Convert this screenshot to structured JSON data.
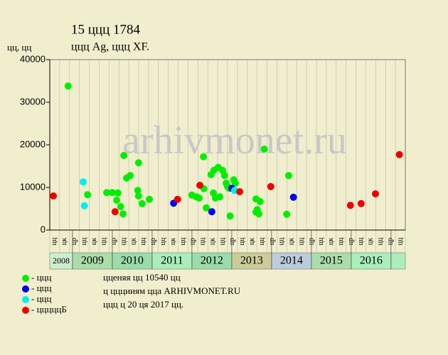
{
  "chart_data": {
    "type": "scatter",
    "title": "15 ццц 1784",
    "subtitle": "ццц Ag, ццц XF.",
    "y_label": "цц, цц",
    "watermark": "arhivmonet.ru",
    "xlim": [
      2008.43,
      2017.36
    ],
    "ylim": [
      0,
      40000
    ],
    "yticks": [
      0,
      10000,
      20000,
      30000,
      40000
    ],
    "xticks": [
      2009,
      2010,
      2011,
      2012,
      2013,
      2014,
      2015,
      2016,
      2017
    ],
    "years": [
      2008,
      2009,
      2010,
      2011,
      2012,
      2013,
      2014,
      2015,
      2016
    ],
    "year_colors": [
      "#cceecc",
      "#aaddaa",
      "#99ddaa",
      "#aaeebb",
      "#99ddaa",
      "#cccc99",
      "#bbccdd",
      "#aaddaa",
      "#aaeebb"
    ],
    "quarter_labels": [
      "цц",
      "цк",
      "цр",
      "цц",
      "цк",
      "цц",
      "цр",
      "цц",
      "цк",
      "цц",
      "цр",
      "цц",
      "цк",
      "цц",
      "цр",
      "цц",
      "цк",
      "цц",
      "цр",
      "цц",
      "цк",
      "цц",
      "цр",
      "цц",
      "цк",
      "цц",
      "цр",
      "цц",
      "цк",
      "цц",
      "цр",
      "цц",
      "цк",
      "цц",
      "цр",
      "цц"
    ],
    "series": [
      {
        "name": "- ццц",
        "color": "#00ee00",
        "x": [
          2008.89,
          2009.38,
          2009.86,
          2010.0,
          2010.14,
          2010.29,
          2010.11,
          2010.21,
          2010.27,
          2010.36,
          2010.45,
          2010.64,
          2010.66,
          2010.66,
          2010.75,
          2010.93,
          2012.0,
          2012.11,
          2012.18,
          2012.29,
          2012.3,
          2012.36,
          2012.48,
          2012.54,
          2012.55,
          2012.59,
          2012.66,
          2012.7,
          2012.77,
          2012.82,
          2012.86,
          2012.89,
          2012.93,
          2012.96,
          2013.05,
          2013.09,
          2013.61,
          2013.64,
          2013.61,
          2013.68,
          2013.71,
          2013.82,
          2014.38,
          2014.43
        ],
        "values": [
          33800,
          8300,
          8800,
          8800,
          8700,
          17500,
          7000,
          5500,
          3800,
          12200,
          12800,
          9300,
          15800,
          8000,
          6200,
          7200,
          8200,
          7800,
          7500,
          17200,
          9700,
          5200,
          13000,
          8700,
          14000,
          7500,
          14700,
          7800,
          14000,
          12800,
          11000,
          10300,
          9800,
          3300,
          11800,
          11000,
          7300,
          4800,
          4200,
          3800,
          6700,
          19000,
          3700,
          12800
        ]
      },
      {
        "name": "- ццц",
        "color": "#0000ee",
        "x": [
          2011.54,
          2012.5,
          2013.0,
          2014.55
        ],
        "values": [
          6300,
          4300,
          9800,
          7700
        ]
      },
      {
        "name": "- ццц",
        "color": "#00eeee",
        "x": [
          2009.27,
          2009.3,
          2013.07
        ],
        "values": [
          11300,
          5700,
          9300
        ]
      },
      {
        "name": "- цццццБ",
        "color": "#ee0000",
        "x": [
          2008.52,
          2010.07,
          2011.64,
          2012.2,
          2013.2,
          2013.98,
          2015.98,
          2016.25,
          2016.61,
          2017.21
        ],
        "values": [
          8000,
          4300,
          7200,
          10500,
          9000,
          10200,
          5800,
          6200,
          8500,
          17700
        ]
      }
    ],
    "notes": [
      "цценяя цц 10540 цц",
      "ц цццииям цца ARHIVMONET.RU",
      "ццц ц 20 ця 2017 цц."
    ]
  }
}
